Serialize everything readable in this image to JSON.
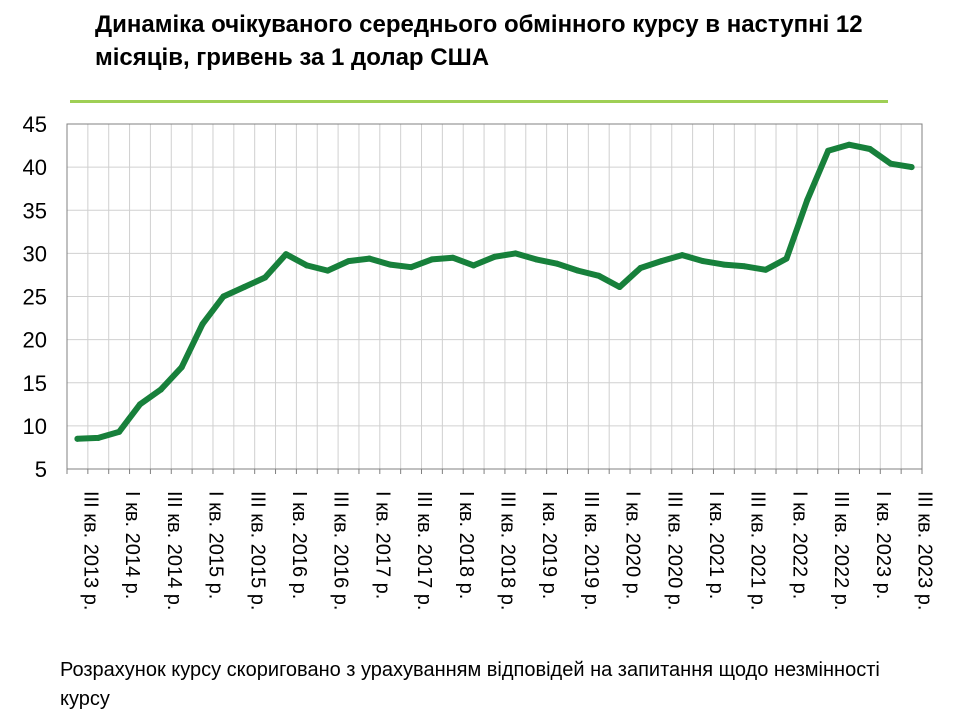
{
  "title": "Динаміка очікуваного середнього обмінного курсу в наступні 12 місяців, гривень за 1 долар США",
  "note": "Розрахунок курсу скориговано з урахуванням відповідей на запитання щодо незмінності курсу",
  "colors": {
    "line": "#17803b",
    "grid": "#d0d0d0",
    "accent_rule": "#9fcf55"
  },
  "chart_data": {
    "type": "line",
    "title": "Динаміка очікуваного середнього обмінного курсу в наступні 12 місяців, гривень за 1 долар США",
    "xlabel": "",
    "ylabel": "",
    "ylim": [
      5,
      45
    ],
    "yticks": [
      5,
      10,
      15,
      20,
      25,
      30,
      35,
      40,
      45
    ],
    "grid": true,
    "legend": "none",
    "categories": [
      "III кв. 2013 р.",
      "",
      "I кв. 2014 р.",
      "",
      "III кв. 2014 р.",
      "",
      "I кв. 2015 р.",
      "",
      "III кв. 2015 р.",
      "",
      "I кв. 2016 р.",
      "",
      "III кв. 2016 р.",
      "",
      "I кв. 2017 р.",
      "",
      "III кв. 2017 р.",
      "",
      "I кв. 2018 р.",
      "",
      "III кв. 2018 р.",
      "",
      "I кв. 2019 р.",
      "",
      "III кв. 2019 р.",
      "",
      "I кв. 2020 р.",
      "",
      "III кв. 2020 р.",
      "",
      "I кв. 2021 р.",
      "",
      "III кв. 2021 р.",
      "",
      "I кв. 2022 р.",
      "",
      "III кв. 2022 р.",
      "",
      "I кв. 2023 р.",
      "",
      "III кв. 2023 р."
    ],
    "series": [
      {
        "values": [
          8.5,
          8.6,
          9.3,
          12.5,
          14.2,
          16.8,
          21.8,
          25.0,
          26.1,
          27.2,
          29.9,
          28.6,
          28.0,
          29.1,
          29.4,
          28.7,
          28.4,
          29.3,
          29.5,
          28.6,
          29.6,
          30.0,
          29.3,
          28.8,
          28.0,
          27.4,
          26.1,
          28.3,
          29.1,
          29.8,
          29.1,
          28.7,
          28.5,
          28.1,
          29.4,
          36.2,
          41.9,
          42.6,
          42.1,
          40.4,
          40.0
        ]
      }
    ]
  }
}
